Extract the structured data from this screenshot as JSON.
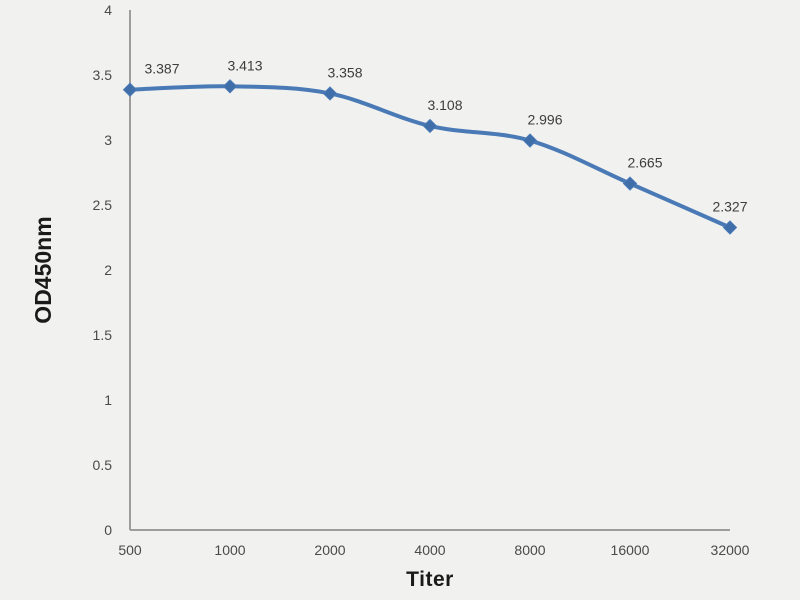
{
  "chart_data": {
    "type": "line",
    "title": "",
    "xlabel": "Titer",
    "ylabel": "OD450nm",
    "categories": [
      "500",
      "1000",
      "2000",
      "4000",
      "8000",
      "16000",
      "32000"
    ],
    "series": [
      {
        "name": "OD450nm",
        "values": [
          3.387,
          3.413,
          3.358,
          3.108,
          2.996,
          2.665,
          2.327
        ],
        "data_labels": [
          "3.387",
          "3.413",
          "3.358",
          "3.108",
          "2.996",
          "2.665",
          "2.327"
        ]
      }
    ],
    "ylim": [
      0,
      4
    ],
    "ytick_step": 0.5,
    "yticks": [
      "0",
      "0.5",
      "1",
      "1.5",
      "2",
      "2.5",
      "3",
      "3.5",
      "4"
    ],
    "grid": false,
    "legend_position": "none",
    "marker_shape": "diamond",
    "line_smooth": true,
    "colors": {
      "background": "#f1f1ef",
      "line": "#4a7ab6",
      "marker": "#3f6ea9",
      "axis": "#9d9d9d",
      "data_label_text": "#3d3d3d",
      "tick_text": "#4a4a4a"
    }
  }
}
